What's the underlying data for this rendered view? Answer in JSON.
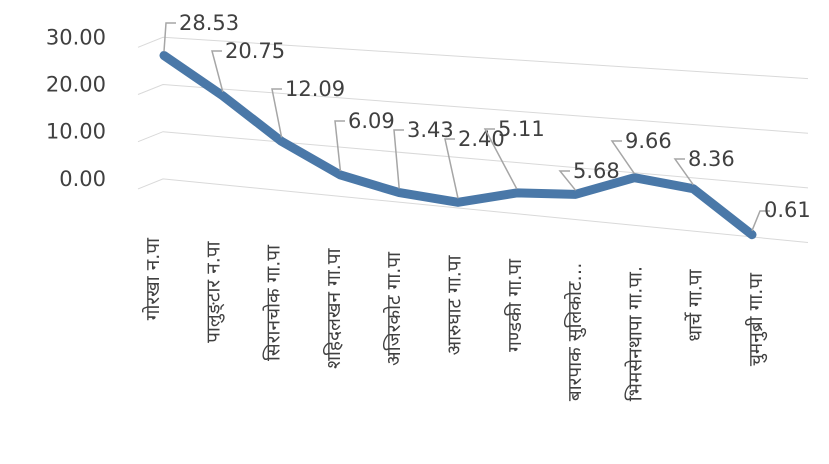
{
  "chart_data": {
    "type": "line",
    "categories": [
      "गोरखा न.पा",
      "पालुङ्टार न.पा",
      "सिरानचोक गा.पा",
      "शहिदलखन गा.पा",
      "अजिरकोट गा.पा",
      "आरुघाट गा.पा",
      "गण्डकी गा.पा",
      "बारपाक सुलिकोट…",
      "भिमसेनथापा गा.पा.",
      "धार्चे गा.पा",
      "चुमनुब्री गा.पा"
    ],
    "series": [
      {
        "values": [
          28.53,
          20.75,
          12.09,
          6.09,
          3.43,
          2.4,
          5.11,
          5.68,
          9.66,
          8.36,
          0.61
        ],
        "labels": [
          "28.53",
          "20.75",
          "12.09",
          "6.09",
          "3.43",
          "2.40",
          "5.11",
          "5.68",
          "9.66",
          "8.36",
          "0.61"
        ],
        "color": "#4a78a8"
      }
    ],
    "yticks": [
      "30.00",
      "20.00",
      "10.00",
      "0.00"
    ],
    "ytick_values": [
      30,
      20,
      10,
      0
    ],
    "ylim": [
      0,
      30
    ],
    "grid": true,
    "legend": "none",
    "title": "",
    "xlabel": "",
    "ylabel": ""
  }
}
